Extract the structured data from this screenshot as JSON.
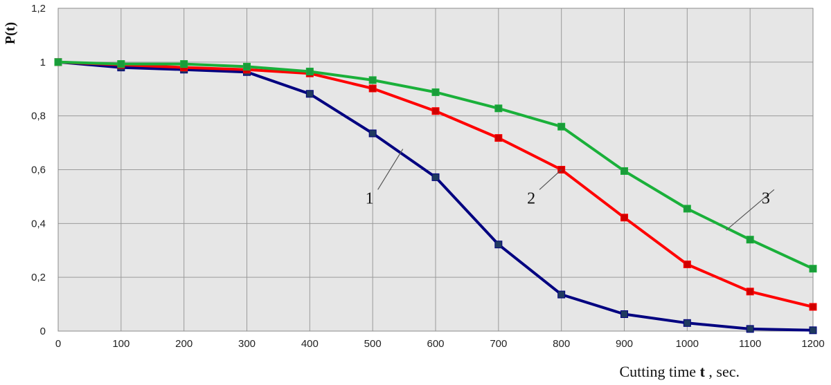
{
  "chart_data": {
    "type": "line",
    "ylabel": "P(t)",
    "xlabel": {
      "prefix": "Cutting time ",
      "symbol": "t",
      "suffix": " , sec."
    },
    "xlim": [
      0,
      1200
    ],
    "ylim": [
      0,
      1.2
    ],
    "x_ticks": [
      0,
      100,
      200,
      300,
      400,
      500,
      600,
      700,
      800,
      900,
      1000,
      1100,
      1200
    ],
    "x_tick_labels": [
      "0",
      "100",
      "200",
      "300",
      "400",
      "500",
      "600",
      "700",
      "800",
      "900",
      "1000",
      "1100",
      "1200"
    ],
    "y_ticks": [
      0,
      0.2,
      0.4,
      0.6,
      0.8,
      1.0,
      1.2
    ],
    "y_tick_labels": [
      "0",
      "0,2",
      "0,4",
      "0,6",
      "0,8",
      "1",
      "1,2"
    ],
    "grid": true,
    "background": "#e6e6e6",
    "grid_color": "#9a9a9a",
    "x": [
      0,
      100,
      200,
      300,
      400,
      500,
      600,
      700,
      800,
      900,
      1000,
      1100,
      1200
    ],
    "series": [
      {
        "label": "1",
        "color": "#000080",
        "marker_color": "#1f3a5f",
        "values": [
          1.0,
          0.98,
          0.972,
          0.963,
          0.882,
          0.735,
          0.572,
          0.322,
          0.136,
          0.063,
          0.03,
          0.008,
          0.003
        ],
        "annotation": {
          "text": "1",
          "point": [
            548,
            0.677
          ],
          "text_at": [
            495,
            0.49
          ]
        }
      },
      {
        "label": "2",
        "color": "#ff0000",
        "marker_color": "#d00000",
        "values": [
          1.0,
          0.99,
          0.98,
          0.972,
          0.958,
          0.902,
          0.818,
          0.718,
          0.6,
          0.422,
          0.248,
          0.147,
          0.09
        ],
        "annotation": {
          "text": "2",
          "point": [
            800,
            0.6
          ],
          "text_at": [
            752,
            0.49
          ]
        }
      },
      {
        "label": "3",
        "color": "#1ab03a",
        "marker_color": "#1a9c3a",
        "values": [
          1.0,
          0.993,
          0.993,
          0.983,
          0.965,
          0.933,
          0.888,
          0.828,
          0.76,
          0.595,
          0.455,
          0.34,
          0.232
        ],
        "annotation": {
          "text": "3",
          "point": [
            1062,
            0.375
          ],
          "text_at": [
            1125,
            0.49
          ]
        }
      }
    ]
  }
}
